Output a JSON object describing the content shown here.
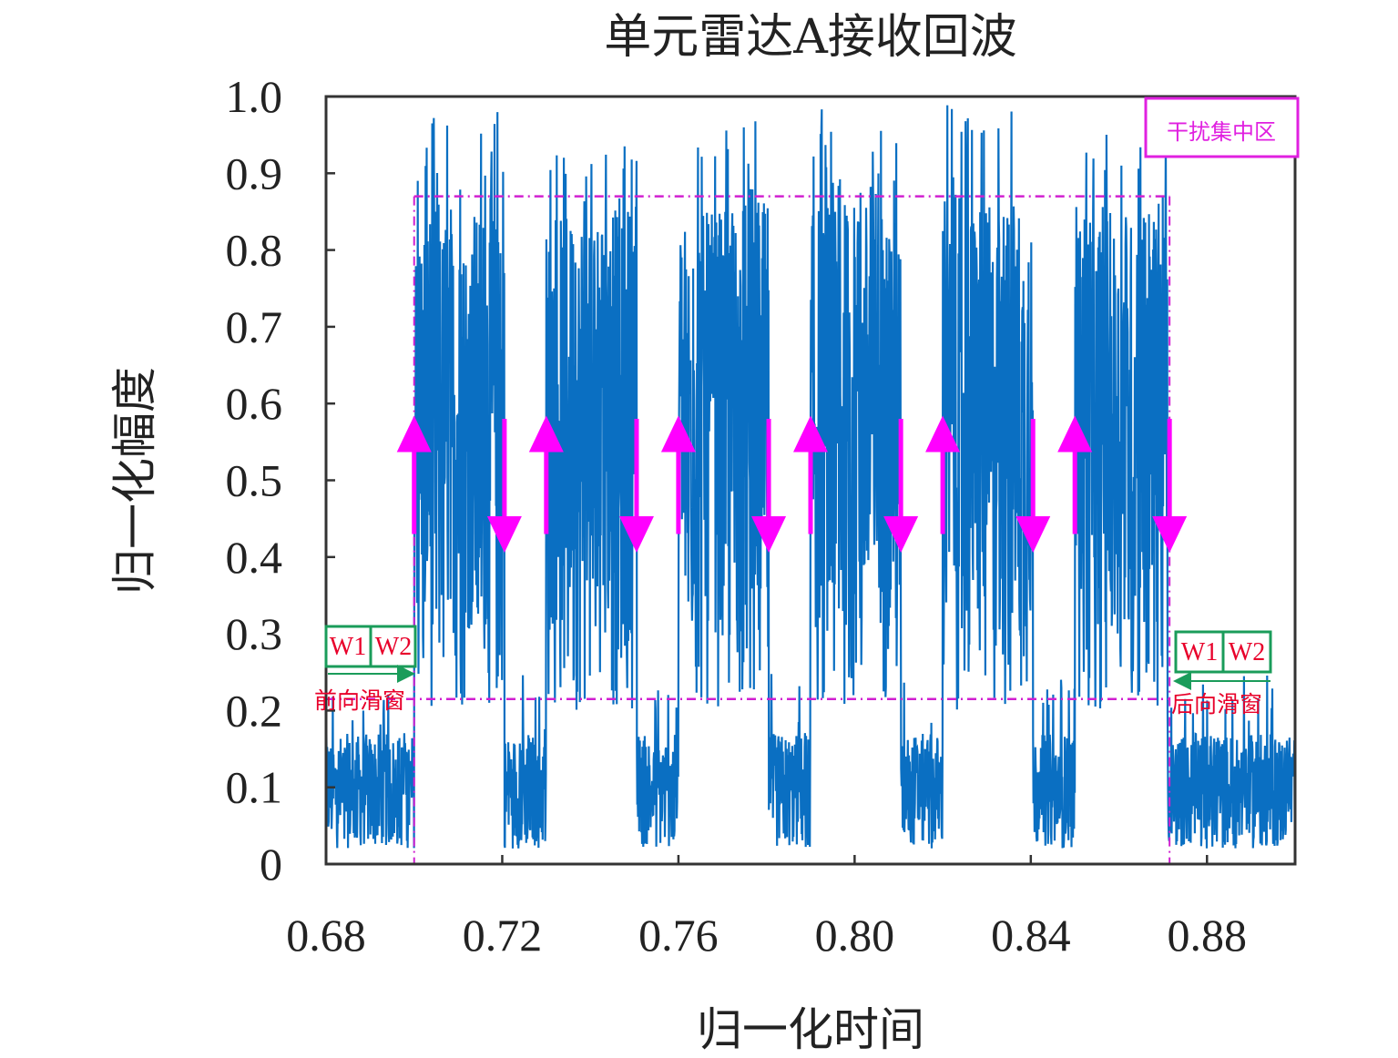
{
  "chart_data": {
    "type": "line",
    "title": "单元雷达A接收回波",
    "xlabel": "归一化时间",
    "ylabel": "归一化幅度",
    "xlim": [
      0.68,
      0.9
    ],
    "ylim": [
      0,
      1.0
    ],
    "x_ticks": [
      "0.68",
      "0.72",
      "0.76",
      "0.80",
      "0.84",
      "0.88"
    ],
    "x_tick_values": [
      0.68,
      0.72,
      0.76,
      0.8,
      0.84,
      0.88
    ],
    "y_ticks": [
      "0",
      "0.1",
      "0.2",
      "0.3",
      "0.4",
      "0.5",
      "0.6",
      "0.7",
      "0.8",
      "0.9",
      "1.0"
    ],
    "y_tick_values": [
      0,
      0.1,
      0.2,
      0.3,
      0.4,
      0.5,
      0.6,
      0.7,
      0.8,
      0.9,
      1.0
    ],
    "grid": false,
    "line_color": "#0a6fc2",
    "signal": {
      "noise_level": [
        0.02,
        0.17
      ],
      "pulses": [
        {
          "start": 0.7,
          "end": 0.7205,
          "peak": 0.99
        },
        {
          "start": 0.73,
          "end": 0.7505,
          "peak": 0.95
        },
        {
          "start": 0.76,
          "end": 0.7805,
          "peak": 0.97
        },
        {
          "start": 0.79,
          "end": 0.8105,
          "peak": 0.99
        },
        {
          "start": 0.82,
          "end": 0.8405,
          "peak": 1.0
        },
        {
          "start": 0.85,
          "end": 0.871,
          "peak": 0.96
        }
      ],
      "pulse_body_level": [
        0.3,
        0.87
      ]
    },
    "annotations": {
      "upper_threshold": 0.87,
      "lower_threshold": 0.215,
      "threshold_x_range": [
        0.7,
        0.8715
      ],
      "threshold_color": "#d020d0",
      "arrow_color": "#ff00ff",
      "up_arrows_x": [
        0.7,
        0.73,
        0.76,
        0.79,
        0.82,
        0.85
      ],
      "down_arrows_x": [
        0.7205,
        0.7505,
        0.7805,
        0.8105,
        0.8405,
        0.8715
      ],
      "arrow_y_range": [
        0.43,
        0.57
      ],
      "interference_box_label": "干扰集中区",
      "interference_box_color": "#e020e0",
      "window_w1_label": "W1",
      "window_w2_label": "W2",
      "window_box_color": "#1a9c5a",
      "forward_slide_label": "前向滑窗",
      "backward_slide_label": "后向滑窗",
      "label_color": "#e8002a"
    }
  }
}
